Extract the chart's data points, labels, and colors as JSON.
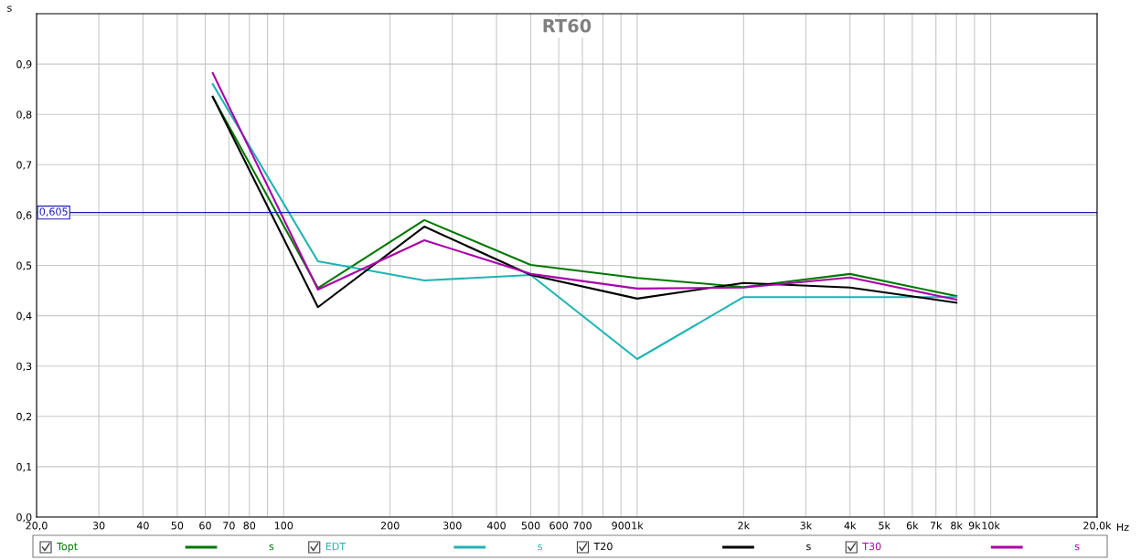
{
  "chart_data": {
    "type": "line",
    "title": "RT60",
    "ylabel": "s",
    "xlabel": "Hz",
    "x": [
      63,
      125,
      250,
      500,
      1000,
      2000,
      4000,
      8000
    ],
    "series": [
      {
        "name": "Topt",
        "color": "#007800",
        "values": [
          0.835,
          0.455,
          0.59,
          0.501,
          0.475,
          0.457,
          0.483,
          0.439
        ]
      },
      {
        "name": "EDT",
        "color": "#1eb4b4",
        "values": [
          0.86,
          0.508,
          0.47,
          0.481,
          0.314,
          0.437,
          0.437,
          0.437
        ]
      },
      {
        "name": "T20",
        "color": "#000000",
        "values": [
          0.835,
          0.417,
          0.577,
          0.481,
          0.434,
          0.465,
          0.456,
          0.426
        ]
      },
      {
        "name": "T30",
        "color": "#aa00aa",
        "values": [
          0.882,
          0.452,
          0.55,
          0.483,
          0.454,
          0.456,
          0.476,
          0.432
        ]
      }
    ],
    "log": "x",
    "xlim": [
      20,
      20000
    ],
    "ylim": [
      0,
      1.0
    ],
    "xticks": [
      {
        "value": 20,
        "label": "20,0"
      },
      30,
      40,
      50,
      60,
      70,
      80,
      {
        "value": 90,
        "label": null
      },
      100,
      200,
      300,
      400,
      500,
      600,
      700,
      {
        "value": 800,
        "label": null
      },
      900,
      {
        "value": 1000,
        "label": "1k"
      },
      {
        "value": 2000,
        "label": "2k"
      },
      {
        "value": 3000,
        "label": "3k"
      },
      {
        "value": 4000,
        "label": "4k"
      },
      {
        "value": 5000,
        "label": "5k"
      },
      {
        "value": 6000,
        "label": "6k"
      },
      {
        "value": 7000,
        "label": "7k"
      },
      {
        "value": 8000,
        "label": "8k"
      },
      {
        "value": 9000,
        "label": "9k"
      },
      {
        "value": 10000,
        "label": "10k"
      },
      {
        "value": 20000,
        "label": "20,0k"
      }
    ],
    "yticks": [
      {
        "value": 0,
        "label": "0,0"
      },
      {
        "value": 0.1,
        "label": "0,1"
      },
      {
        "value": 0.2,
        "label": "0,2"
      },
      {
        "value": 0.3,
        "label": "0,3"
      },
      {
        "value": 0.4,
        "label": "0,4"
      },
      {
        "value": 0.5,
        "label": "0,5"
      },
      {
        "value": 0.6,
        "label": "0,6"
      },
      {
        "value": 0.7,
        "label": "0,7"
      },
      {
        "value": 0.8,
        "label": "0,8"
      },
      {
        "value": 0.9,
        "label": "0,9"
      }
    ],
    "ref_lines": [
      {
        "axis": "y",
        "value": 0.605,
        "label": "0,605",
        "color": "#1e1eb4"
      }
    ],
    "grid": true,
    "legend": "bottom",
    "marker": "none",
    "line_style": "solid"
  }
}
